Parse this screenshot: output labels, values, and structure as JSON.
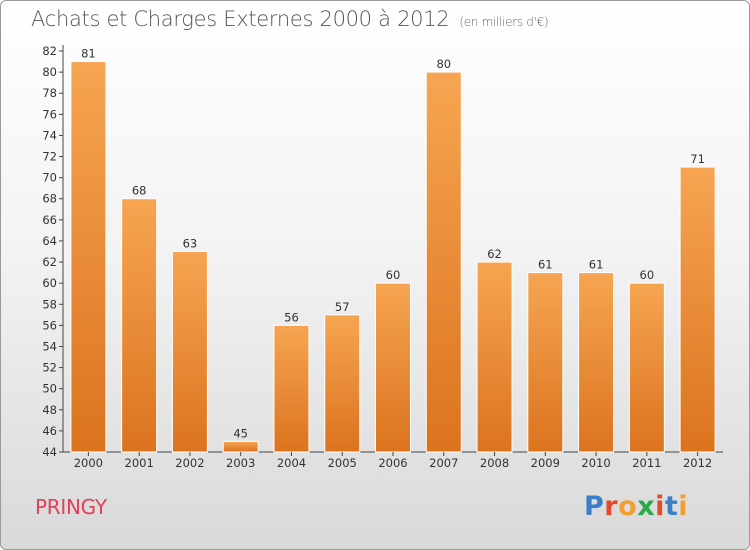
{
  "header": {
    "title": "Achats et Charges Externes 2000 à 2012",
    "subtitle": "(en milliers d'€)"
  },
  "footer": {
    "place": "PRINGY",
    "logo": {
      "letters": [
        "P",
        "r",
        "o",
        "x",
        "i",
        "t",
        "i"
      ],
      "colors": [
        "#3a7fc8",
        "#e24a2a",
        "#f0a030",
        "#2aa84a",
        "#e24a2a",
        "#3a7fc8",
        "#f0a030"
      ]
    }
  },
  "chart_data": {
    "type": "bar",
    "title": "Achats et Charges Externes 2000 à 2012",
    "subtitle": "(en milliers d'€)",
    "categories": [
      "2000",
      "2001",
      "2002",
      "2003",
      "2004",
      "2005",
      "2006",
      "2007",
      "2008",
      "2009",
      "2010",
      "2011",
      "2012"
    ],
    "values": [
      81,
      68,
      63,
      45,
      56,
      57,
      60,
      80,
      62,
      61,
      61,
      60,
      71
    ],
    "ylim": [
      44,
      82
    ],
    "yticks": [
      44,
      46,
      48,
      50,
      52,
      54,
      56,
      58,
      60,
      62,
      64,
      66,
      68,
      70,
      72,
      74,
      76,
      78,
      80,
      82
    ],
    "grid": false,
    "data_labels": true,
    "bar_color": "#f0933a",
    "xlabel": "",
    "ylabel": ""
  }
}
